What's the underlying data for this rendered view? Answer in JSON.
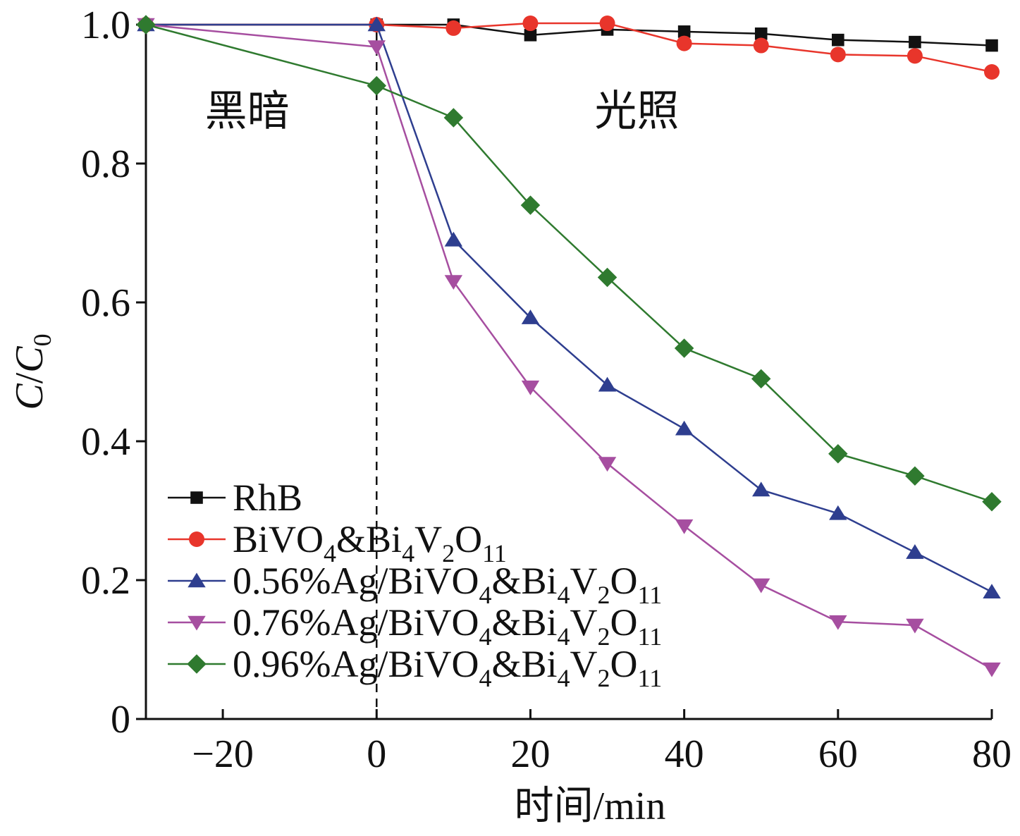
{
  "chart_data": {
    "type": "line",
    "xlabel": "时间/min",
    "ylabel": {
      "main": "C",
      "sep": "/",
      "sub_base": "C",
      "sub": "0"
    },
    "xlim": [
      -30,
      80
    ],
    "ylim": [
      0,
      1.0
    ],
    "x_ticks": [
      -20,
      0,
      20,
      40,
      60,
      80
    ],
    "x_tick_labels": [
      "−20",
      "0",
      "20",
      "40",
      "60",
      "80"
    ],
    "y_ticks": [
      0,
      0.2,
      0.4,
      0.6,
      0.8,
      1.0
    ],
    "y_tick_labels": [
      "0",
      "0.2",
      "0.4",
      "0.6",
      "0.8",
      "1.0"
    ],
    "x": [
      -30,
      0,
      10,
      20,
      30,
      40,
      50,
      60,
      70,
      80
    ],
    "grid": false,
    "legend_position": "bottom-left",
    "divider_x": 0,
    "annotations": [
      {
        "text": "黑暗",
        "region": "dark"
      },
      {
        "text": "光照",
        "region": "light"
      }
    ],
    "series": [
      {
        "name": "RhB",
        "name_parts": [
          [
            "RhB",
            "n"
          ]
        ],
        "marker": "square",
        "color": "#111111",
        "values": [
          1.0,
          1.0,
          1.0,
          0.985,
          0.993,
          0.99,
          0.987,
          0.978,
          0.975,
          0.97
        ]
      },
      {
        "name": "BiVO4&Bi4V2O11",
        "name_parts": [
          [
            "BiVO",
            "n"
          ],
          [
            "4",
            "s"
          ],
          [
            "&",
            "n"
          ],
          [
            "Bi",
            "n"
          ],
          [
            "4",
            "s"
          ],
          [
            "V",
            "n"
          ],
          [
            "2",
            "s"
          ],
          [
            "O",
            "n"
          ],
          [
            "11",
            "s"
          ]
        ],
        "marker": "circle",
        "color": "#e8352b",
        "values": [
          1.0,
          1.0,
          0.995,
          1.002,
          1.002,
          0.973,
          0.97,
          0.957,
          0.955,
          0.932
        ]
      },
      {
        "name": "0.56%Ag/BiVO4&Bi4V2O11",
        "name_parts": [
          [
            "0.56%Ag/BiVO",
            "n"
          ],
          [
            "4",
            "s"
          ],
          [
            "&",
            "n"
          ],
          [
            "Bi",
            "n"
          ],
          [
            "4",
            "s"
          ],
          [
            "V",
            "n"
          ],
          [
            "2",
            "s"
          ],
          [
            "O",
            "n"
          ],
          [
            "11",
            "s"
          ]
        ],
        "marker": "triangle-up",
        "color": "#2e3e8f",
        "values": [
          1.0,
          1.0,
          0.69,
          0.578,
          0.481,
          0.418,
          0.33,
          0.296,
          0.24,
          0.183
        ]
      },
      {
        "name": "0.76%Ag/BiVO4&Bi4V2O11",
        "name_parts": [
          [
            "0.76%Ag/BiVO",
            "n"
          ],
          [
            "4",
            "s"
          ],
          [
            "&",
            "n"
          ],
          [
            "Bi",
            "n"
          ],
          [
            "4",
            "s"
          ],
          [
            "V",
            "n"
          ],
          [
            "2",
            "s"
          ],
          [
            "O",
            "n"
          ],
          [
            "11",
            "s"
          ]
        ],
        "marker": "triangle-down",
        "color": "#a64ea0",
        "values": [
          1.0,
          0.968,
          0.63,
          0.478,
          0.368,
          0.278,
          0.193,
          0.14,
          0.135,
          0.072
        ]
      },
      {
        "name": "0.96%Ag/BiVO4&Bi4V2O11",
        "name_parts": [
          [
            "0.96%Ag/BiVO",
            "n"
          ],
          [
            "4",
            "s"
          ],
          [
            "&",
            "n"
          ],
          [
            "Bi",
            "n"
          ],
          [
            "4",
            "s"
          ],
          [
            "V",
            "n"
          ],
          [
            "2",
            "s"
          ],
          [
            "O",
            "n"
          ],
          [
            "11",
            "s"
          ]
        ],
        "marker": "diamond",
        "color": "#2f7a2f",
        "values": [
          1.0,
          0.912,
          0.866,
          0.74,
          0.636,
          0.534,
          0.49,
          0.382,
          0.35,
          0.313
        ]
      }
    ]
  }
}
